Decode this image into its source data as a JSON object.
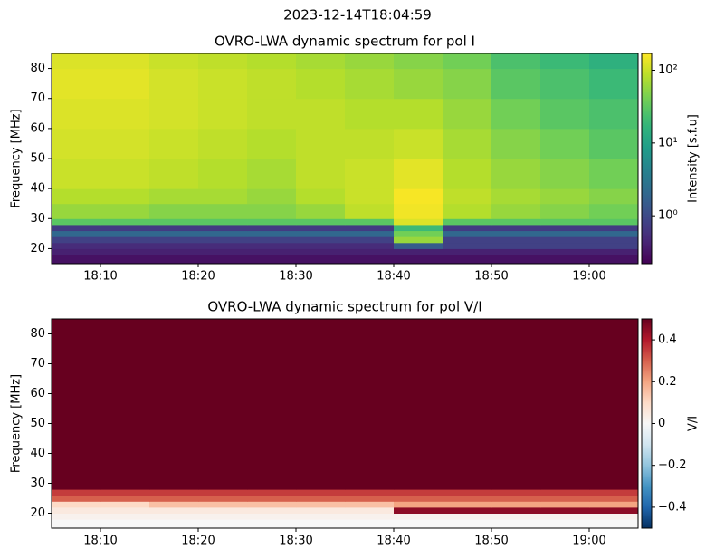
{
  "title": "2023-12-14T18:04:59",
  "chart_data": [
    {
      "type": "heatmap",
      "title": "OVRO-LWA dynamic spectrum for pol I",
      "ylabel": "Frequency [MHz]",
      "x_edges": [
        "18:05",
        "18:10",
        "18:15",
        "18:20",
        "18:25",
        "18:30",
        "18:35",
        "18:40",
        "18:45",
        "18:50",
        "18:55",
        "19:00",
        "19:05"
      ],
      "y_edges": [
        15,
        18,
        20,
        22,
        24,
        26,
        28,
        30,
        35,
        40,
        50,
        60,
        70,
        80,
        85
      ],
      "values": [
        [
          0.3,
          0.3,
          0.3,
          0.3,
          0.3,
          0.3,
          0.3,
          0.3,
          0.3,
          0.3,
          0.3,
          0.3
        ],
        [
          0.4,
          0.4,
          0.4,
          0.4,
          0.4,
          0.4,
          0.4,
          0.4,
          0.4,
          0.4,
          0.4,
          0.4
        ],
        [
          0.5,
          0.5,
          0.5,
          0.5,
          0.5,
          0.5,
          0.5,
          1.5,
          0.8,
          0.8,
          0.8,
          0.8
        ],
        [
          0.8,
          0.8,
          0.8,
          0.8,
          0.8,
          0.8,
          0.8,
          60,
          0.8,
          0.8,
          0.8,
          0.8
        ],
        [
          2,
          2,
          2,
          2,
          2,
          2,
          2,
          40,
          2,
          2,
          2,
          2
        ],
        [
          0.7,
          0.7,
          0.7,
          0.7,
          0.7,
          0.7,
          0.7,
          20,
          0.7,
          0.7,
          0.7,
          0.7
        ],
        [
          30,
          30,
          30,
          30,
          30,
          30,
          30,
          120,
          30,
          30,
          30,
          30
        ],
        [
          60,
          60,
          50,
          50,
          50,
          60,
          90,
          150,
          80,
          60,
          50,
          40
        ],
        [
          80,
          80,
          70,
          70,
          60,
          80,
          100,
          160,
          90,
          70,
          60,
          50
        ],
        [
          100,
          100,
          90,
          80,
          70,
          90,
          100,
          130,
          80,
          60,
          50,
          40
        ],
        [
          110,
          110,
          100,
          90,
          80,
          90,
          90,
          100,
          70,
          50,
          40,
          30
        ],
        [
          120,
          120,
          110,
          100,
          90,
          90,
          80,
          80,
          60,
          40,
          30,
          25
        ],
        [
          130,
          130,
          110,
          100,
          90,
          80,
          70,
          60,
          50,
          30,
          25,
          20
        ],
        [
          120,
          120,
          100,
          90,
          80,
          70,
          60,
          50,
          40,
          25,
          20,
          15
        ]
      ],
      "xlim": [
        "18:05",
        "19:05"
      ],
      "xticks": [
        "18:10",
        "18:20",
        "18:30",
        "18:40",
        "18:50",
        "19:00"
      ],
      "ylim": [
        15,
        85
      ],
      "yticks": [
        20,
        30,
        40,
        50,
        60,
        70,
        80
      ],
      "colorbar": {
        "label": "Intensity [s.f.u]",
        "colormap": "viridis",
        "scale": "log",
        "lim": [
          0.22,
          170
        ],
        "ticks": [
          {
            "value": 1,
            "label": "10⁰"
          },
          {
            "value": 10,
            "label": "10¹"
          },
          {
            "value": 100,
            "label": "10²"
          }
        ]
      }
    },
    {
      "type": "heatmap",
      "title": "OVRO-LWA dynamic spectrum for pol V/I",
      "ylabel": "Frequency [MHz]",
      "x_edges": [
        "18:05",
        "18:10",
        "18:15",
        "18:20",
        "18:25",
        "18:30",
        "18:35",
        "18:40",
        "18:45",
        "18:50",
        "18:55",
        "19:00",
        "19:05"
      ],
      "y_edges": [
        15,
        18,
        20,
        22,
        24,
        26,
        28,
        30,
        35,
        40,
        50,
        60,
        70,
        80,
        85
      ],
      "values": [
        [
          0,
          0,
          0,
          0,
          0,
          0,
          0,
          0,
          0,
          0,
          0,
          0
        ],
        [
          0.02,
          0.02,
          0.02,
          0.02,
          0.02,
          0.02,
          0.02,
          0.02,
          0.02,
          0.02,
          0.02,
          0.02
        ],
        [
          0.05,
          0.05,
          0.05,
          0.05,
          0.05,
          0.05,
          0.05,
          0.45,
          0.45,
          0.45,
          0.45,
          0.45
        ],
        [
          0.1,
          0.1,
          0.15,
          0.15,
          0.15,
          0.15,
          0.15,
          0.2,
          0.2,
          0.2,
          0.2,
          0.2
        ],
        [
          0.3,
          0.3,
          0.3,
          0.3,
          0.3,
          0.3,
          0.3,
          0.3,
          0.3,
          0.3,
          0.3,
          0.3
        ],
        [
          0.35,
          0.35,
          0.35,
          0.35,
          0.35,
          0.35,
          0.35,
          0.35,
          0.35,
          0.35,
          0.35,
          0.35
        ],
        [
          0.5,
          0.5,
          0.5,
          0.5,
          0.5,
          0.5,
          0.5,
          0.5,
          0.5,
          0.5,
          0.5,
          0.5
        ],
        [
          0.5,
          0.5,
          0.5,
          0.5,
          0.5,
          0.5,
          0.5,
          0.5,
          0.5,
          0.5,
          0.5,
          0.5
        ],
        [
          0.5,
          0.5,
          0.5,
          0.5,
          0.5,
          0.5,
          0.5,
          0.5,
          0.5,
          0.5,
          0.5,
          0.5
        ],
        [
          0.5,
          0.5,
          0.5,
          0.5,
          0.5,
          0.5,
          0.5,
          0.5,
          0.5,
          0.5,
          0.5,
          0.5
        ],
        [
          0.5,
          0.5,
          0.5,
          0.5,
          0.5,
          0.5,
          0.5,
          0.5,
          0.5,
          0.5,
          0.5,
          0.5
        ],
        [
          0.5,
          0.5,
          0.5,
          0.5,
          0.5,
          0.5,
          0.5,
          0.5,
          0.5,
          0.5,
          0.5,
          0.5
        ],
        [
          0.5,
          0.5,
          0.5,
          0.5,
          0.5,
          0.5,
          0.5,
          0.5,
          0.5,
          0.5,
          0.5,
          0.5
        ],
        [
          0.5,
          0.5,
          0.5,
          0.5,
          0.5,
          0.5,
          0.5,
          0.5,
          0.5,
          0.5,
          0.5,
          0.5
        ]
      ],
      "xlim": [
        "18:05",
        "19:05"
      ],
      "xticks": [
        "18:10",
        "18:20",
        "18:30",
        "18:40",
        "18:50",
        "19:00"
      ],
      "ylim": [
        15,
        85
      ],
      "yticks": [
        20,
        30,
        40,
        50,
        60,
        70,
        80
      ],
      "colorbar": {
        "label": "V/I",
        "colormap": "RdBu_r",
        "scale": "linear",
        "lim": [
          -0.5,
          0.5
        ],
        "ticks": [
          {
            "value": -0.4,
            "label": "−0.4"
          },
          {
            "value": -0.2,
            "label": "−0.2"
          },
          0.0,
          0.2,
          0.4
        ]
      }
    }
  ]
}
